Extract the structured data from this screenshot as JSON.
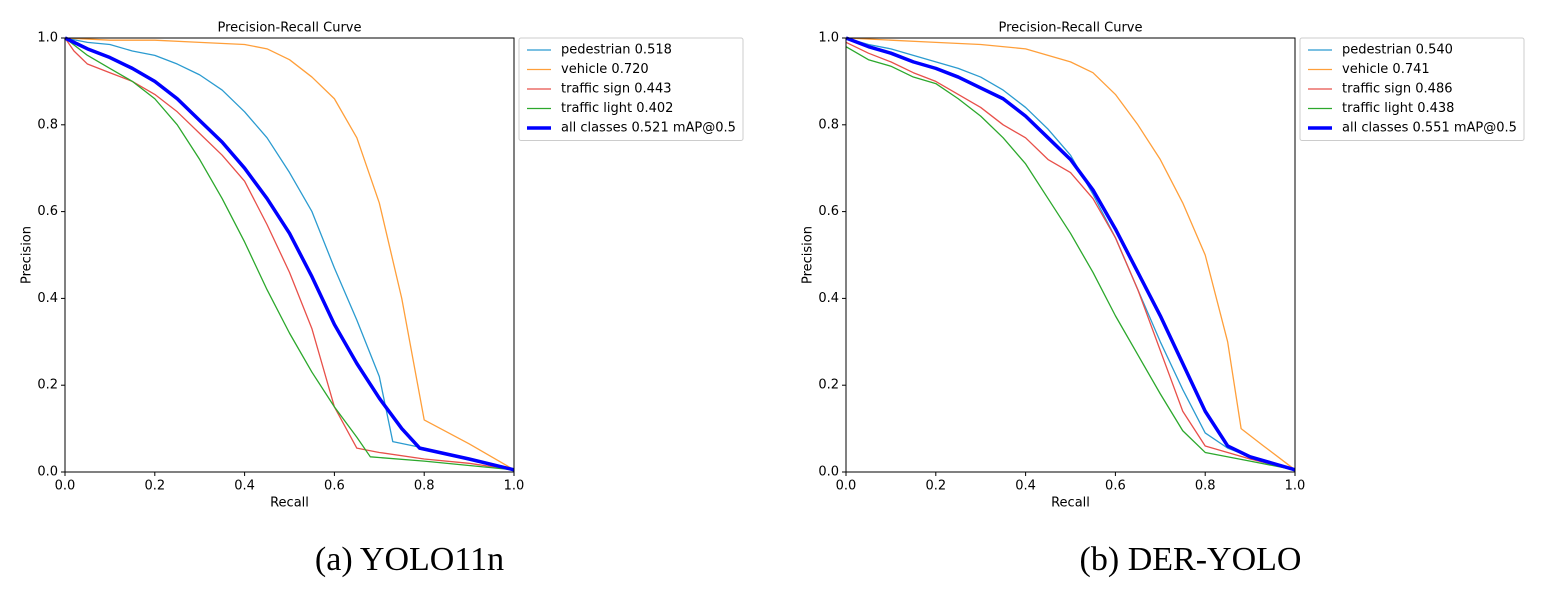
{
  "chart_data": [
    {
      "type": "line",
      "title": "Precision-Recall Curve",
      "xlabel": "Recall",
      "ylabel": "Precision",
      "caption": "(a) YOLO11n",
      "xlim": [
        0,
        1
      ],
      "ylim": [
        0,
        1
      ],
      "xticks": [
        {
          "value": 0,
          "label": "0.0"
        },
        0.2,
        0.4,
        0.6,
        0.8,
        {
          "value": 1,
          "label": "1.0"
        }
      ],
      "yticks": [
        {
          "value": 0,
          "label": "0.0"
        },
        0.2,
        0.4,
        0.6,
        0.8,
        {
          "value": 1,
          "label": "1.0"
        }
      ],
      "legend": "outside-upper-right",
      "series": [
        {
          "name": "pedestrian 0.518",
          "color": "#2b9bd0",
          "width": 1.3,
          "x": [
            0,
            0.05,
            0.1,
            0.15,
            0.2,
            0.25,
            0.3,
            0.35,
            0.4,
            0.45,
            0.5,
            0.55,
            0.6,
            0.65,
            0.7,
            0.73,
            0.8,
            0.9,
            1.0
          ],
          "values": [
            1.0,
            0.99,
            0.985,
            0.97,
            0.96,
            0.94,
            0.915,
            0.88,
            0.83,
            0.77,
            0.69,
            0.6,
            0.47,
            0.35,
            0.22,
            0.07,
            0.055,
            0.03,
            0.005
          ]
        },
        {
          "name": "vehicle 0.720",
          "color": "#ff9f3a",
          "width": 1.3,
          "x": [
            0,
            0.1,
            0.2,
            0.3,
            0.4,
            0.45,
            0.5,
            0.55,
            0.6,
            0.65,
            0.7,
            0.75,
            0.8,
            0.9,
            1.0
          ],
          "values": [
            1.0,
            0.995,
            0.995,
            0.99,
            0.985,
            0.975,
            0.95,
            0.91,
            0.86,
            0.77,
            0.62,
            0.4,
            0.12,
            0.065,
            0.005
          ]
        },
        {
          "name": "traffic sign 0.443",
          "color": "#e8504a",
          "width": 1.3,
          "x": [
            0,
            0.02,
            0.05,
            0.1,
            0.15,
            0.2,
            0.25,
            0.3,
            0.35,
            0.4,
            0.45,
            0.5,
            0.55,
            0.6,
            0.65,
            0.7,
            0.8,
            0.9,
            1.0
          ],
          "values": [
            1.0,
            0.97,
            0.94,
            0.92,
            0.9,
            0.87,
            0.83,
            0.78,
            0.73,
            0.67,
            0.57,
            0.46,
            0.33,
            0.15,
            0.055,
            0.045,
            0.03,
            0.02,
            0.005
          ]
        },
        {
          "name": "traffic light 0.402",
          "color": "#2ca82c",
          "width": 1.3,
          "x": [
            0,
            0.05,
            0.1,
            0.15,
            0.2,
            0.25,
            0.3,
            0.35,
            0.4,
            0.45,
            0.5,
            0.55,
            0.6,
            0.65,
            0.68,
            0.8,
            0.9,
            1.0
          ],
          "values": [
            1.0,
            0.96,
            0.93,
            0.9,
            0.86,
            0.8,
            0.72,
            0.63,
            0.53,
            0.42,
            0.32,
            0.23,
            0.15,
            0.08,
            0.035,
            0.025,
            0.015,
            0.005
          ]
        },
        {
          "name": "all classes 0.521 mAP@0.5",
          "color": "#0000ff",
          "width": 3.5,
          "x": [
            0,
            0.05,
            0.1,
            0.15,
            0.2,
            0.25,
            0.3,
            0.35,
            0.4,
            0.45,
            0.5,
            0.55,
            0.6,
            0.65,
            0.7,
            0.75,
            0.79,
            0.9,
            1.0
          ],
          "values": [
            1.0,
            0.975,
            0.955,
            0.93,
            0.9,
            0.86,
            0.81,
            0.76,
            0.7,
            0.63,
            0.55,
            0.45,
            0.34,
            0.25,
            0.17,
            0.1,
            0.055,
            0.03,
            0.005
          ]
        }
      ]
    },
    {
      "type": "line",
      "title": "Precision-Recall Curve",
      "xlabel": "Recall",
      "ylabel": "Precision",
      "caption": "(b) DER-YOLO",
      "xlim": [
        0,
        1
      ],
      "ylim": [
        0,
        1
      ],
      "xticks": [
        {
          "value": 0,
          "label": "0.0"
        },
        0.2,
        0.4,
        0.6,
        0.8,
        {
          "value": 1,
          "label": "1.0"
        }
      ],
      "yticks": [
        {
          "value": 0,
          "label": "0.0"
        },
        0.2,
        0.4,
        0.6,
        0.8,
        {
          "value": 1,
          "label": "1.0"
        }
      ],
      "legend": "outside-upper-right",
      "series": [
        {
          "name": "pedestrian 0.540",
          "color": "#2b9bd0",
          "width": 1.3,
          "x": [
            0,
            0.05,
            0.1,
            0.15,
            0.2,
            0.25,
            0.3,
            0.35,
            0.4,
            0.45,
            0.5,
            0.55,
            0.6,
            0.65,
            0.7,
            0.75,
            0.8,
            0.85,
            0.9,
            1.0
          ],
          "values": [
            1.0,
            0.985,
            0.975,
            0.96,
            0.945,
            0.93,
            0.91,
            0.88,
            0.84,
            0.79,
            0.73,
            0.64,
            0.54,
            0.42,
            0.3,
            0.19,
            0.09,
            0.055,
            0.035,
            0.005
          ]
        },
        {
          "name": "vehicle 0.741",
          "color": "#ff9f3a",
          "width": 1.3,
          "x": [
            0,
            0.1,
            0.2,
            0.3,
            0.4,
            0.45,
            0.5,
            0.55,
            0.6,
            0.65,
            0.7,
            0.75,
            0.8,
            0.85,
            0.88,
            0.93,
            1.0
          ],
          "values": [
            1.0,
            0.995,
            0.99,
            0.985,
            0.975,
            0.96,
            0.945,
            0.92,
            0.87,
            0.8,
            0.72,
            0.62,
            0.5,
            0.3,
            0.1,
            0.06,
            0.005
          ]
        },
        {
          "name": "traffic sign 0.486",
          "color": "#e8504a",
          "width": 1.3,
          "x": [
            0,
            0.05,
            0.1,
            0.15,
            0.2,
            0.25,
            0.3,
            0.35,
            0.4,
            0.45,
            0.5,
            0.55,
            0.6,
            0.65,
            0.7,
            0.75,
            0.8,
            0.9,
            1.0
          ],
          "values": [
            0.99,
            0.965,
            0.945,
            0.92,
            0.9,
            0.87,
            0.84,
            0.8,
            0.77,
            0.72,
            0.69,
            0.63,
            0.54,
            0.42,
            0.28,
            0.14,
            0.06,
            0.03,
            0.005
          ]
        },
        {
          "name": "traffic light 0.438",
          "color": "#2ca82c",
          "width": 1.3,
          "x": [
            0,
            0.05,
            0.1,
            0.15,
            0.2,
            0.25,
            0.3,
            0.35,
            0.4,
            0.45,
            0.5,
            0.55,
            0.6,
            0.65,
            0.7,
            0.75,
            0.8,
            0.9,
            1.0
          ],
          "values": [
            0.98,
            0.95,
            0.935,
            0.91,
            0.895,
            0.86,
            0.82,
            0.77,
            0.71,
            0.63,
            0.55,
            0.46,
            0.36,
            0.27,
            0.18,
            0.095,
            0.045,
            0.025,
            0.005
          ]
        },
        {
          "name": "all classes 0.551 mAP@0.5",
          "color": "#0000ff",
          "width": 3.5,
          "x": [
            0,
            0.05,
            0.1,
            0.15,
            0.2,
            0.25,
            0.3,
            0.35,
            0.4,
            0.45,
            0.5,
            0.55,
            0.6,
            0.65,
            0.7,
            0.75,
            0.8,
            0.85,
            0.9,
            1.0
          ],
          "values": [
            1.0,
            0.98,
            0.965,
            0.945,
            0.93,
            0.91,
            0.885,
            0.86,
            0.82,
            0.77,
            0.72,
            0.65,
            0.56,
            0.46,
            0.36,
            0.25,
            0.14,
            0.06,
            0.035,
            0.005
          ]
        }
      ]
    }
  ]
}
